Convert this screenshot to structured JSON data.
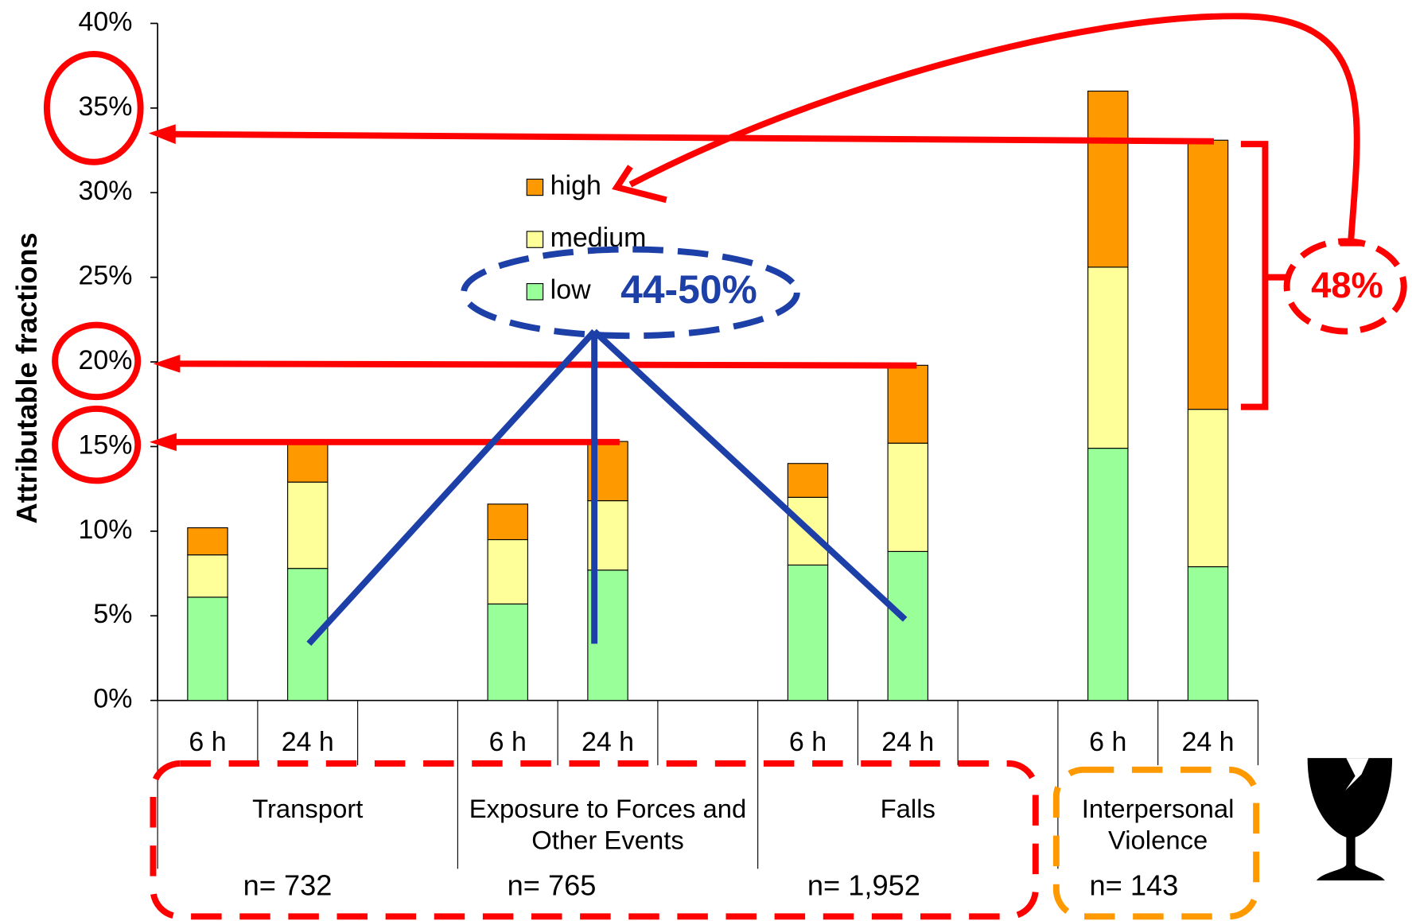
{
  "chart_data": {
    "type": "bar",
    "stacked": true,
    "y_label": "Attributable fractions",
    "categories": [
      "6 h",
      "24 h",
      null,
      "6 h",
      "24 h",
      null,
      "6 h",
      "24 h",
      null,
      "6 h",
      "24 h"
    ],
    "series": [
      {
        "name": "low",
        "color": "#99ff99",
        "values": [
          6.1,
          7.8,
          null,
          5.7,
          7.7,
          null,
          8.0,
          8.8,
          null,
          14.9,
          7.9
        ]
      },
      {
        "name": "medium",
        "color": "#ffff99",
        "values": [
          2.5,
          5.1,
          null,
          3.8,
          4.1,
          null,
          4.0,
          6.4,
          null,
          10.7,
          9.3
        ]
      },
      {
        "name": "high",
        "color": "#ff9900",
        "values": [
          1.6,
          2.3,
          null,
          2.1,
          3.5,
          null,
          2.0,
          4.6,
          null,
          10.4,
          15.9
        ]
      }
    ],
    "groups": [
      {
        "name": "Transport",
        "n": "n= 732"
      },
      {
        "name": "Exposure to Forces and Other Events",
        "n": "n= 765"
      },
      {
        "name": "Falls",
        "n": "n= 1,952"
      },
      {
        "name": "Interpersonal Violence",
        "n": "n= 143"
      }
    ],
    "ylim": [
      0,
      40
    ],
    "yticks": [
      {
        "value": 0,
        "label": "0%"
      },
      {
        "value": 5,
        "label": "5%"
      },
      {
        "value": 10,
        "label": "10%"
      },
      {
        "value": 15,
        "label": "15%"
      },
      {
        "value": 20,
        "label": "20%"
      },
      {
        "value": 25,
        "label": "25%"
      },
      {
        "value": 30,
        "label": "30%"
      },
      {
        "value": 35,
        "label": "35%"
      },
      {
        "value": 40,
        "label": "40%"
      }
    ],
    "annotations": [
      "44-50%",
      "48%"
    ]
  }
}
